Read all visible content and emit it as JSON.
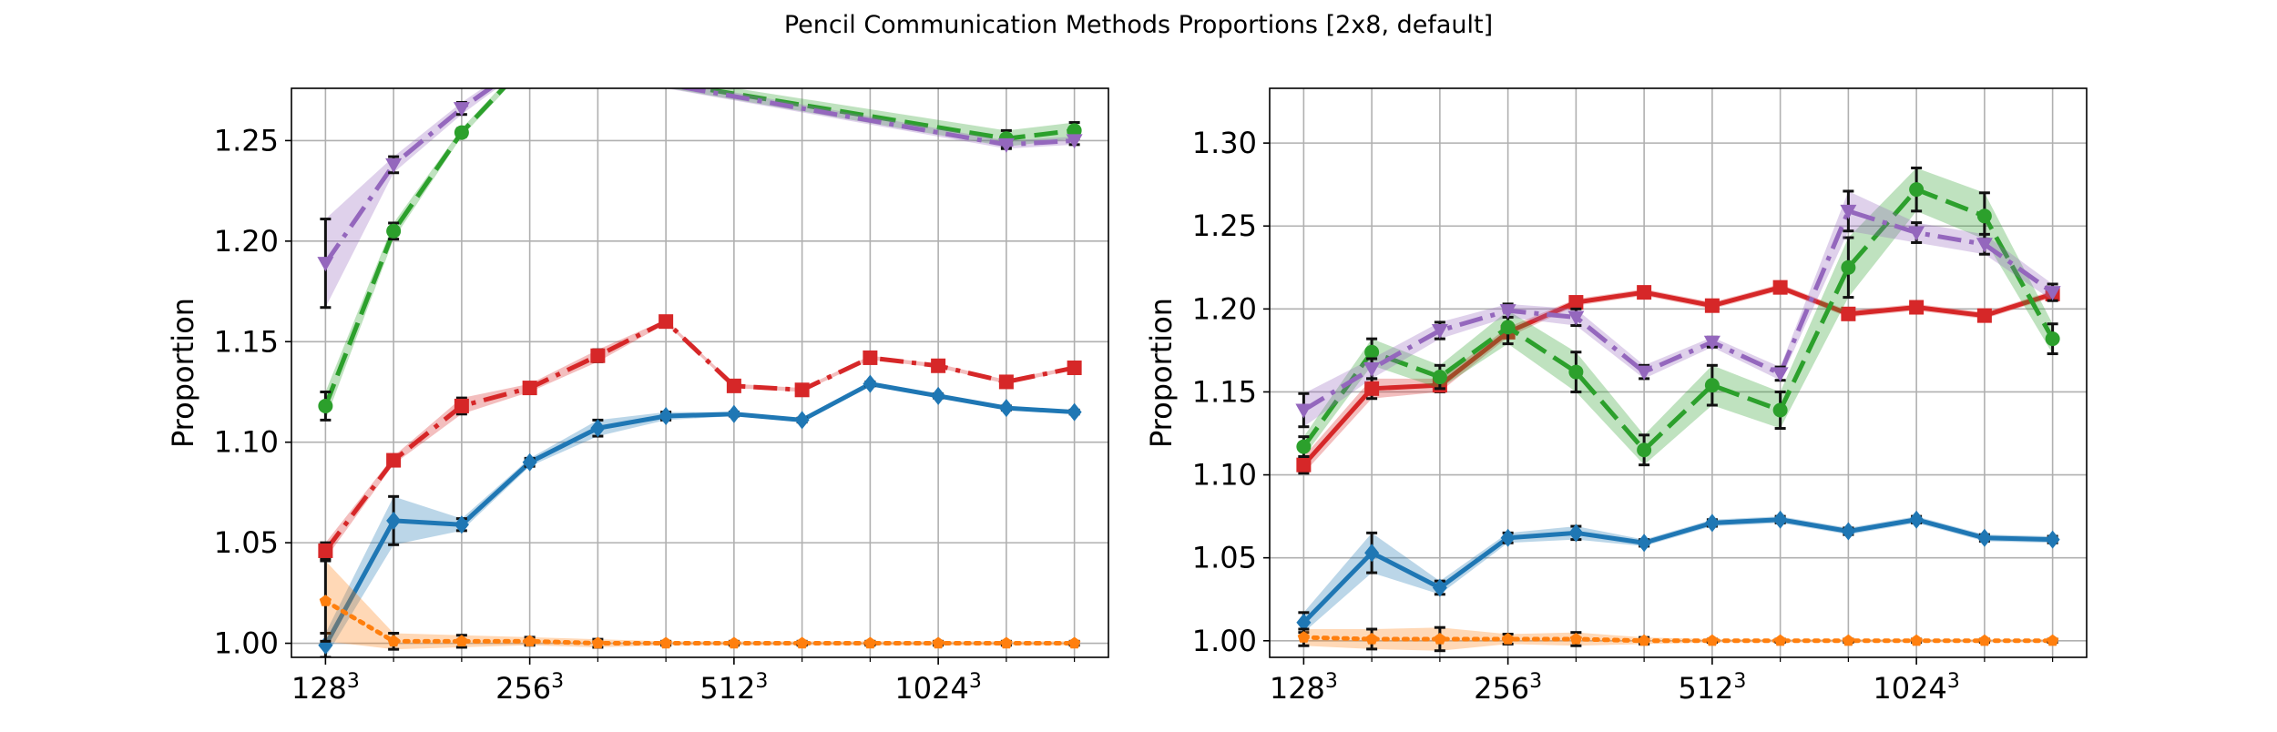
{
  "figure": {
    "title": "Pencil Communication Methods Proportions [2x8, default]"
  },
  "chart_data": [
    {
      "type": "line",
      "ylabel": "Proportion",
      "xlabel": "",
      "x_tick_labels": [
        {
          "base": "128",
          "exp": "3",
          "x": 0
        },
        {
          "base": "256",
          "exp": "3",
          "x": 3
        },
        {
          "base": "512",
          "exp": "3",
          "x": 6
        },
        {
          "base": "1024",
          "exp": "3",
          "x": 9
        }
      ],
      "x_minor_ticks": [
        1,
        2,
        4,
        5,
        7,
        8,
        10,
        11
      ],
      "xlim": [
        -0.5,
        11.5
      ],
      "ylim": [
        0.993,
        1.276
      ],
      "y_ticks": [
        1.0,
        1.05,
        1.1,
        1.15,
        1.2,
        1.25
      ],
      "y_tick_labels": [
        "1.00",
        "1.05",
        "1.10",
        "1.15",
        "1.20",
        "1.25"
      ],
      "grid": true,
      "series": [
        {
          "color": "#1f77b4",
          "linestyle": "solid",
          "marker": "diamond",
          "x": [
            0,
            1,
            2,
            3,
            4,
            5,
            6,
            7,
            8,
            9,
            10,
            11
          ],
          "values": [
            0.999,
            1.061,
            1.059,
            1.09,
            1.107,
            1.113,
            1.114,
            1.111,
            1.129,
            1.123,
            1.117,
            1.115
          ],
          "errors": [
            0.006,
            0.012,
            0.003,
            0.002,
            0.004,
            0.002,
            0.001,
            0.001,
            0.001,
            0.001,
            0.001,
            0.001
          ]
        },
        {
          "color": "#ff7f0e",
          "linestyle": "dotted",
          "marker": "pentagon",
          "x": [
            0,
            1,
            2,
            3,
            4,
            5,
            6,
            7,
            8,
            9,
            10,
            11
          ],
          "values": [
            1.021,
            1.001,
            1.001,
            1.001,
            1.0,
            1.0,
            1.0,
            1.0,
            1.0,
            1.0,
            1.0,
            1.0
          ],
          "errors": [
            0.02,
            0.004,
            0.003,
            0.002,
            0.002,
            0.001,
            0.001,
            0.001,
            0.001,
            0.001,
            0.001,
            0.001
          ]
        },
        {
          "color": "#d62728",
          "linestyle": "dashdot",
          "marker": "square",
          "x": [
            0,
            1,
            2,
            3,
            4,
            5,
            6,
            7,
            8,
            9,
            10,
            11
          ],
          "values": [
            1.046,
            1.091,
            1.118,
            1.127,
            1.143,
            1.16,
            1.128,
            1.126,
            1.142,
            1.138,
            1.13,
            1.137
          ],
          "errors": [
            0.004,
            0.002,
            0.004,
            0.002,
            0.003,
            0.001,
            0.001,
            0.001,
            0.001,
            0.001,
            0.001,
            0.001
          ]
        },
        {
          "color": "#2ca02c",
          "linestyle": "dashed",
          "marker": "circle",
          "x": [
            0,
            1,
            2,
            3,
            10,
            11
          ],
          "values": [
            1.118,
            1.205,
            1.254,
            1.29,
            1.251,
            1.255
          ],
          "errors": [
            0.007,
            0.004,
            0.002,
            0.002,
            0.004,
            0.004
          ]
        },
        {
          "color": "#9467bd",
          "linestyle": "dashdot",
          "marker": "triangle-down",
          "x": [
            0,
            1,
            2,
            3,
            10,
            11
          ],
          "values": [
            1.189,
            1.238,
            1.266,
            1.29,
            1.248,
            1.25
          ],
          "errors": [
            0.022,
            0.004,
            0.003,
            0.002,
            0.002,
            0.002
          ]
        }
      ]
    },
    {
      "type": "line",
      "ylabel": "Proportion",
      "xlabel": "",
      "x_tick_labels": [
        {
          "base": "128",
          "exp": "3",
          "x": 0
        },
        {
          "base": "256",
          "exp": "3",
          "x": 3
        },
        {
          "base": "512",
          "exp": "3",
          "x": 6
        },
        {
          "base": "1024",
          "exp": "3",
          "x": 9
        }
      ],
      "x_minor_ticks": [
        1,
        2,
        4,
        5,
        7,
        8,
        10,
        11
      ],
      "xlim": [
        -0.5,
        11.5
      ],
      "ylim": [
        0.99,
        1.333
      ],
      "y_ticks": [
        1.0,
        1.05,
        1.1,
        1.15,
        1.2,
        1.25,
        1.3
      ],
      "y_tick_labels": [
        "1.00",
        "1.05",
        "1.10",
        "1.15",
        "1.20",
        "1.25",
        "1.30"
      ],
      "grid": true,
      "series": [
        {
          "color": "#1f77b4",
          "linestyle": "solid",
          "marker": "diamond",
          "x": [
            0,
            1,
            2,
            3,
            4,
            5,
            6,
            7,
            8,
            9,
            10,
            11
          ],
          "values": [
            1.011,
            1.053,
            1.032,
            1.062,
            1.065,
            1.059,
            1.071,
            1.073,
            1.066,
            1.073,
            1.062,
            1.061
          ],
          "errors": [
            0.006,
            0.012,
            0.004,
            0.003,
            0.004,
            0.002,
            0.002,
            0.002,
            0.002,
            0.002,
            0.002,
            0.002
          ]
        },
        {
          "color": "#ff7f0e",
          "linestyle": "dotted",
          "marker": "pentagon",
          "x": [
            0,
            1,
            2,
            3,
            4,
            5,
            6,
            7,
            8,
            9,
            10,
            11
          ],
          "values": [
            1.002,
            1.001,
            1.001,
            1.001,
            1.001,
            1.0,
            1.0,
            1.0,
            1.0,
            1.0,
            1.0,
            1.0
          ],
          "errors": [
            0.005,
            0.006,
            0.007,
            0.003,
            0.004,
            0.002,
            0.001,
            0.001,
            0.001,
            0.001,
            0.001,
            0.001
          ]
        },
        {
          "color": "#d62728",
          "linestyle": "solid",
          "marker": "square",
          "x": [
            0,
            1,
            2,
            3,
            4,
            5,
            6,
            7,
            8,
            9,
            10,
            11
          ],
          "values": [
            1.106,
            1.152,
            1.154,
            1.186,
            1.204,
            1.21,
            1.202,
            1.213,
            1.197,
            1.201,
            1.196,
            1.209
          ],
          "errors": [
            0.005,
            0.006,
            0.004,
            0.003,
            0.002,
            0.002,
            0.002,
            0.002,
            0.002,
            0.002,
            0.002,
            0.002
          ]
        },
        {
          "color": "#2ca02c",
          "linestyle": "dashed",
          "marker": "circle",
          "x": [
            0,
            1,
            2,
            3,
            4,
            5,
            6,
            7,
            8,
            9,
            10,
            11
          ],
          "values": [
            1.117,
            1.174,
            1.159,
            1.189,
            1.162,
            1.115,
            1.154,
            1.139,
            1.225,
            1.272,
            1.256,
            1.182
          ],
          "errors": [
            0.006,
            0.008,
            0.007,
            0.01,
            0.012,
            0.009,
            0.012,
            0.011,
            0.018,
            0.013,
            0.014,
            0.009
          ]
        },
        {
          "color": "#9467bd",
          "linestyle": "dashdot",
          "marker": "triangle-down",
          "x": [
            0,
            1,
            2,
            3,
            4,
            5,
            6,
            7,
            8,
            9,
            10,
            11
          ],
          "values": [
            1.139,
            1.164,
            1.187,
            1.199,
            1.195,
            1.162,
            1.18,
            1.161,
            1.259,
            1.246,
            1.239,
            1.21
          ],
          "errors": [
            0.01,
            0.006,
            0.005,
            0.004,
            0.005,
            0.004,
            0.003,
            0.004,
            0.012,
            0.006,
            0.006,
            0.005
          ]
        }
      ]
    }
  ]
}
